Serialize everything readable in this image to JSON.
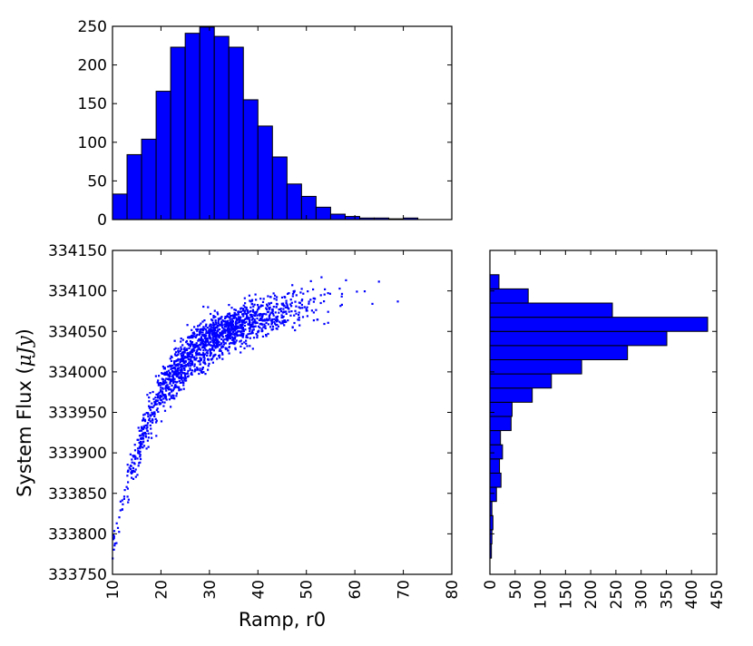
{
  "chart_data": [
    {
      "panel": "top-histogram",
      "type": "bar",
      "xlim": [
        10,
        80
      ],
      "ylim": [
        0,
        250
      ],
      "yticks": [
        "0",
        "50",
        "100",
        "150",
        "200",
        "250"
      ],
      "bin_edges": [
        10,
        13,
        16,
        19,
        22,
        25,
        28,
        31,
        34,
        37,
        40,
        43,
        46,
        49,
        52,
        55,
        58,
        61,
        64,
        67,
        70,
        73
      ],
      "values": [
        33,
        84,
        104,
        166,
        223,
        241,
        249,
        237,
        223,
        155,
        121,
        81,
        46,
        30,
        16,
        7,
        4,
        2,
        2,
        1,
        2
      ],
      "color": "#0000ff"
    },
    {
      "panel": "scatter",
      "type": "scatter",
      "xlabel": "Ramp, r0",
      "ylabel": "System Flux ($\\mu Jy$)",
      "xlim": [
        10,
        80
      ],
      "ylim": [
        333750,
        334150
      ],
      "xticks": [
        "10",
        "20",
        "30",
        "40",
        "50",
        "60",
        "70",
        "80"
      ],
      "yticks": [
        "333750",
        "333800",
        "333850",
        "333900",
        "333950",
        "334000",
        "334050",
        "334100",
        "334150"
      ],
      "trend": {
        "x": [
          10,
          13,
          16,
          20,
          25,
          30,
          35,
          40,
          45,
          50,
          55,
          60,
          65,
          70,
          73
        ],
        "y": [
          333785,
          333860,
          333920,
          333975,
          334015,
          334040,
          334055,
          334065,
          334075,
          334082,
          334088,
          334092,
          334096,
          334100,
          334105
        ]
      },
      "n_points": 1650,
      "color": "#0000ff"
    },
    {
      "panel": "right-histogram",
      "type": "bar",
      "orientation": "horizontal",
      "xlim": [
        0,
        450
      ],
      "ylim": [
        333750,
        334150
      ],
      "xticks": [
        "0",
        "50",
        "100",
        "150",
        "200",
        "250",
        "300",
        "350",
        "400",
        "450"
      ],
      "bin_edges": [
        333770,
        333787.5,
        333805,
        333822.5,
        333840,
        333857.5,
        333875,
        333892.5,
        333910,
        333927.5,
        333945,
        333962.5,
        333980,
        333997.5,
        334015,
        334032.5,
        334050,
        334067.5,
        334085,
        334102.5,
        334120
      ],
      "values": [
        3,
        4,
        6,
        4,
        13,
        22,
        19,
        25,
        21,
        42,
        44,
        84,
        122,
        182,
        273,
        351,
        432,
        243,
        76,
        18
      ],
      "color": "#0000ff"
    }
  ]
}
